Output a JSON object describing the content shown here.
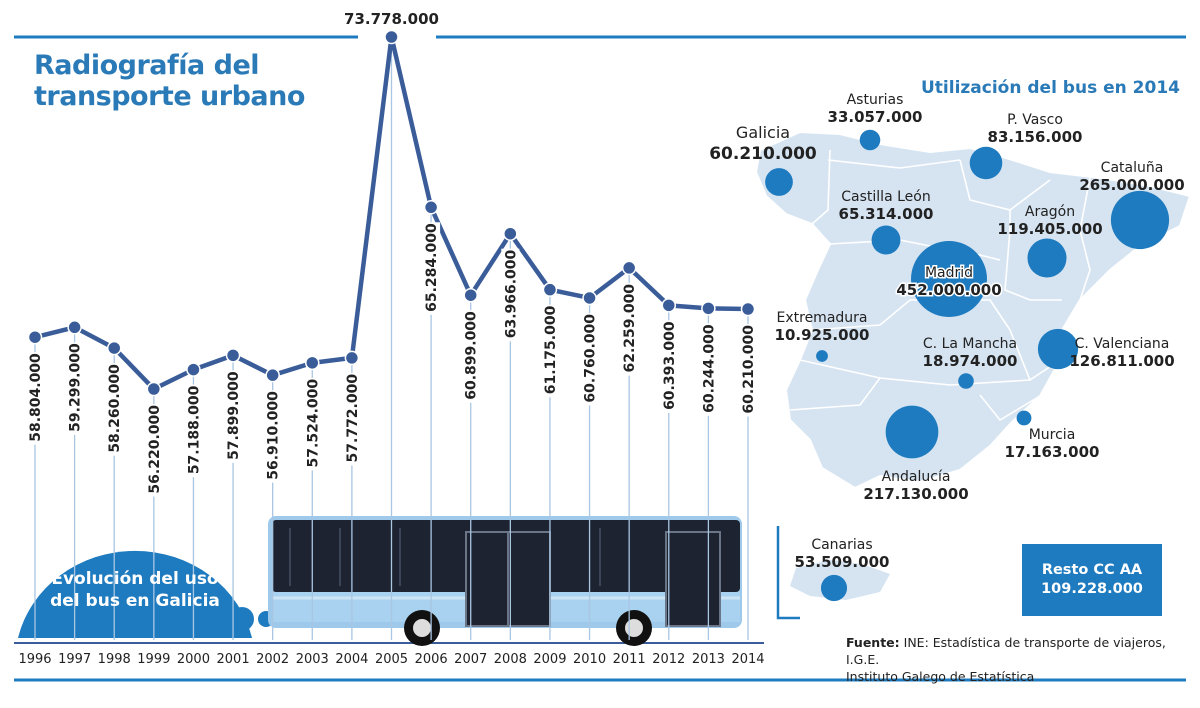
{
  "title_line1": "Radiografía del",
  "title_line2": "transporte urbano",
  "evolution_label_line1": "Evolución del uso",
  "evolution_label_line2": "del bus en Galicia",
  "map_title": "Utilización del bus en 2014",
  "source_label": "Fuente:",
  "source_text_line1": "INE: Estadística de transporte de viajeros, I.G.E.",
  "source_text_line2": "Instituto Galego de Estatística",
  "chart_data": [
    {
      "type": "line",
      "title": "Evolución del uso del bus en Galicia",
      "categories": [
        "1996",
        "1997",
        "1998",
        "1999",
        "2000",
        "2001",
        "2002",
        "2003",
        "2004",
        "2005",
        "2006",
        "2007",
        "2008",
        "2009",
        "2010",
        "2011",
        "2012",
        "2013",
        "2014"
      ],
      "values": [
        58804000,
        59299000,
        58260000,
        56220000,
        57188000,
        57899000,
        56910000,
        57524000,
        57772000,
        73778000,
        65284000,
        60899000,
        63966000,
        61175000,
        60760000,
        62259000,
        60393000,
        60244000,
        60210000
      ],
      "value_labels": [
        "58.804.000",
        "59.299.000",
        "58.260.000",
        "56.220.000",
        "57.188.000",
        "57.899.000",
        "56.910.000",
        "57.524.000",
        "57.772.000",
        "73.778.000",
        "65.284.000",
        "60.899.000",
        "63.966.000",
        "61.175.000",
        "60.760.000",
        "62.259.000",
        "60.393.000",
        "60.244.000",
        "60.210.000"
      ],
      "color": "#3a5d9a"
    },
    {
      "type": "bubble-map",
      "title": "Utilización del bus en 2014",
      "regions": [
        {
          "name": "Galicia",
          "value": 60210000,
          "label": "60.210.000"
        },
        {
          "name": "Asturias",
          "value": 33057000,
          "label": "33.057.000"
        },
        {
          "name": "P. Vasco",
          "value": 83156000,
          "label": "83.156.000"
        },
        {
          "name": "Cataluña",
          "value": 265000000,
          "label": "265.000.000"
        },
        {
          "name": "Castilla León",
          "value": 65314000,
          "label": "65.314.000"
        },
        {
          "name": "Aragón",
          "value": 119405000,
          "label": "119.405.000"
        },
        {
          "name": "Madrid",
          "value": 452000000,
          "label": "452.000.000"
        },
        {
          "name": "Extremadura",
          "value": 10925000,
          "label": "10.925.000"
        },
        {
          "name": "C. La Mancha",
          "value": 18974000,
          "label": "18.974.000"
        },
        {
          "name": "C. Valenciana",
          "value": 126811000,
          "label": "126.811.000"
        },
        {
          "name": "Murcia",
          "value": 17163000,
          "label": "17.163.000"
        },
        {
          "name": "Andalucía",
          "value": 217130000,
          "label": "217.130.000"
        },
        {
          "name": "Canarias",
          "value": 53509000,
          "label": "53.509.000"
        },
        {
          "name": "Resto CC AA",
          "value": 109228000,
          "label": "109.228.000"
        }
      ],
      "bubble_color": "#1f7bbf",
      "land_color": "#d6e4f2"
    }
  ]
}
